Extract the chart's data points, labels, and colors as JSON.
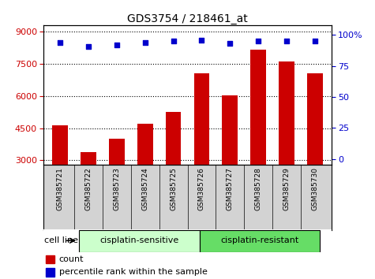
{
  "title": "GDS3754 / 218461_at",
  "samples": [
    "GSM385721",
    "GSM385722",
    "GSM385723",
    "GSM385724",
    "GSM385725",
    "GSM385726",
    "GSM385727",
    "GSM385728",
    "GSM385729",
    "GSM385730"
  ],
  "counts": [
    4620,
    3380,
    4020,
    4720,
    5250,
    7050,
    6020,
    8150,
    7600,
    7050
  ],
  "percentile_ranks": [
    94,
    91,
    92,
    94,
    95,
    96,
    93,
    95,
    95,
    95
  ],
  "bar_color": "#cc0000",
  "dot_color": "#0000cc",
  "left_yticks": [
    3000,
    4500,
    6000,
    7500,
    9000
  ],
  "right_yticks": [
    0,
    25,
    50,
    75,
    100
  ],
  "ylim_left": [
    2800,
    9300
  ],
  "ylim_right": [
    -4.5,
    108
  ],
  "group_colors_sensitive": "#ccffcc",
  "group_colors_resistant": "#66dd66",
  "label_bg_color": "#d3d3d3",
  "legend_count_color": "#cc0000",
  "legend_dot_color": "#0000cc",
  "figsize": [
    4.75,
    3.54
  ],
  "dpi": 100
}
